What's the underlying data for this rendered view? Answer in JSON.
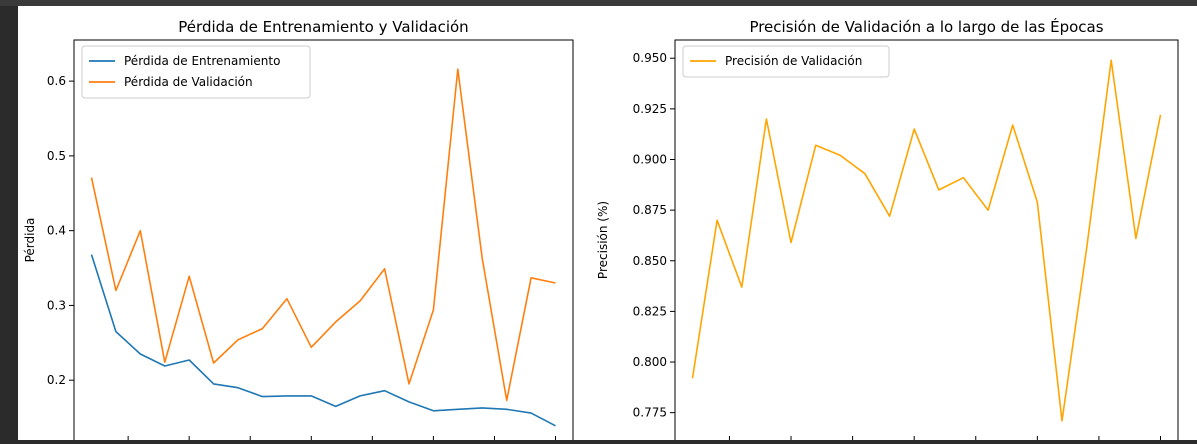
{
  "chart_data": [
    {
      "type": "line",
      "title": "Pérdida de Entrenamiento y Validación",
      "xlabel": "",
      "ylabel": "Pérdida",
      "ylim": [
        0.12,
        0.655
      ],
      "yticks": [
        0.2,
        0.3,
        0.4,
        0.5,
        0.6
      ],
      "ytick_labels": [
        "0.2",
        "0.3",
        "0.4",
        "0.5",
        "0.6"
      ],
      "xlim": [
        0,
        20
      ],
      "x": [
        1,
        2,
        3,
        4,
        5,
        6,
        7,
        8,
        9,
        10,
        11,
        12,
        13,
        14,
        15,
        16,
        17,
        18,
        19,
        20
      ],
      "legend_position": "top-left",
      "grid": false,
      "series": [
        {
          "name": "Pérdida de Entrenamiento",
          "color": "#1f77b4",
          "values": [
            0.368,
            0.265,
            0.235,
            0.219,
            0.227,
            0.195,
            0.19,
            0.178,
            0.179,
            0.179,
            0.165,
            0.179,
            0.186,
            0.171,
            0.159,
            0.161,
            0.163,
            0.161,
            0.156,
            0.139
          ]
        },
        {
          "name": "Pérdida de Validación",
          "color": "#ff7f0e",
          "values": [
            0.471,
            0.32,
            0.4,
            0.224,
            0.339,
            0.223,
            0.254,
            0.269,
            0.309,
            0.244,
            0.278,
            0.306,
            0.349,
            0.195,
            0.294,
            0.616,
            0.363,
            0.173,
            0.337,
            0.33
          ]
        }
      ]
    },
    {
      "type": "line",
      "title": "Precisión de Validación a lo largo de las Épocas",
      "xlabel": "",
      "ylabel": "Precisión (%)",
      "ylim": [
        0.7615,
        0.959
      ],
      "yticks": [
        0.775,
        0.8,
        0.825,
        0.85,
        0.875,
        0.9,
        0.925,
        0.95
      ],
      "ytick_labels": [
        "0.775",
        "0.800",
        "0.825",
        "0.850",
        "0.875",
        "0.900",
        "0.925",
        "0.950"
      ],
      "xlim": [
        0,
        20
      ],
      "x": [
        1,
        2,
        3,
        4,
        5,
        6,
        7,
        8,
        9,
        10,
        11,
        12,
        13,
        14,
        15,
        16,
        17,
        18,
        19,
        20
      ],
      "legend_position": "top-left",
      "grid": false,
      "series": [
        {
          "name": "Precisión de Validación",
          "color": "#ffa500",
          "values": [
            0.792,
            0.87,
            0.837,
            0.92,
            0.859,
            0.907,
            0.902,
            0.893,
            0.872,
            0.915,
            0.885,
            0.891,
            0.875,
            0.917,
            0.879,
            0.771,
            0.856,
            0.949,
            0.861,
            0.922
          ]
        }
      ]
    }
  ]
}
